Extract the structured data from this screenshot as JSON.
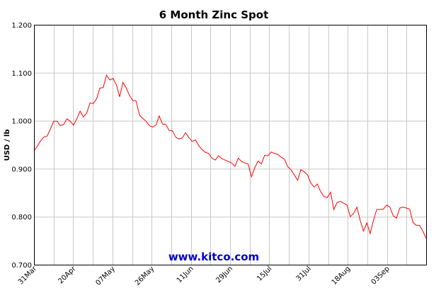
{
  "chart_data": {
    "type": "line",
    "title": "6 Month Zinc Spot",
    "ylabel": "USD / lb",
    "watermark": "www.kitco.com",
    "ylim": [
      0.7,
      1.2
    ],
    "yticks": [
      "1.200",
      "1.100",
      "1.000",
      "0.900",
      "0.800",
      "0.700"
    ],
    "xticks": [
      "31Mar",
      "20Apr",
      "07May",
      "26May",
      "11Jun",
      "29Jun",
      "15Jul",
      "31Jul",
      "18Aug",
      "03Sep"
    ],
    "grid": true,
    "line_color": "#ff0000",
    "series": [
      {
        "values": [
          0.937,
          0.947,
          0.958,
          0.966,
          0.968,
          0.983,
          0.999,
          0.999,
          0.99,
          0.992,
          1.004,
          0.999,
          0.991,
          1.004,
          1.02,
          1.008,
          1.016,
          1.037,
          1.036,
          1.046,
          1.068,
          1.069,
          1.095,
          1.085,
          1.088,
          1.075,
          1.05,
          1.08,
          1.068,
          1.052,
          1.042,
          1.041,
          1.012,
          1.005,
          0.999,
          0.99,
          0.987,
          0.991,
          1.01,
          0.993,
          0.992,
          0.98,
          0.979,
          0.966,
          0.962,
          0.964,
          0.975,
          0.965,
          0.957,
          0.96,
          0.948,
          0.94,
          0.934,
          0.932,
          0.922,
          0.918,
          0.927,
          0.921,
          0.918,
          0.915,
          0.912,
          0.905,
          0.922,
          0.915,
          0.912,
          0.91,
          0.883,
          0.902,
          0.916,
          0.91,
          0.928,
          0.927,
          0.935,
          0.932,
          0.93,
          0.924,
          0.92,
          0.904,
          0.898,
          0.887,
          0.876,
          0.898,
          0.894,
          0.887,
          0.87,
          0.862,
          0.868,
          0.852,
          0.842,
          0.84,
          0.851,
          0.815,
          0.83,
          0.832,
          0.828,
          0.824,
          0.8,
          0.807,
          0.82,
          0.792,
          0.77,
          0.787,
          0.765,
          0.792,
          0.815,
          0.815,
          0.816,
          0.824,
          0.82,
          0.802,
          0.797,
          0.818,
          0.82,
          0.818,
          0.816,
          0.788,
          0.782,
          0.782,
          0.77,
          0.755
        ]
      }
    ]
  }
}
